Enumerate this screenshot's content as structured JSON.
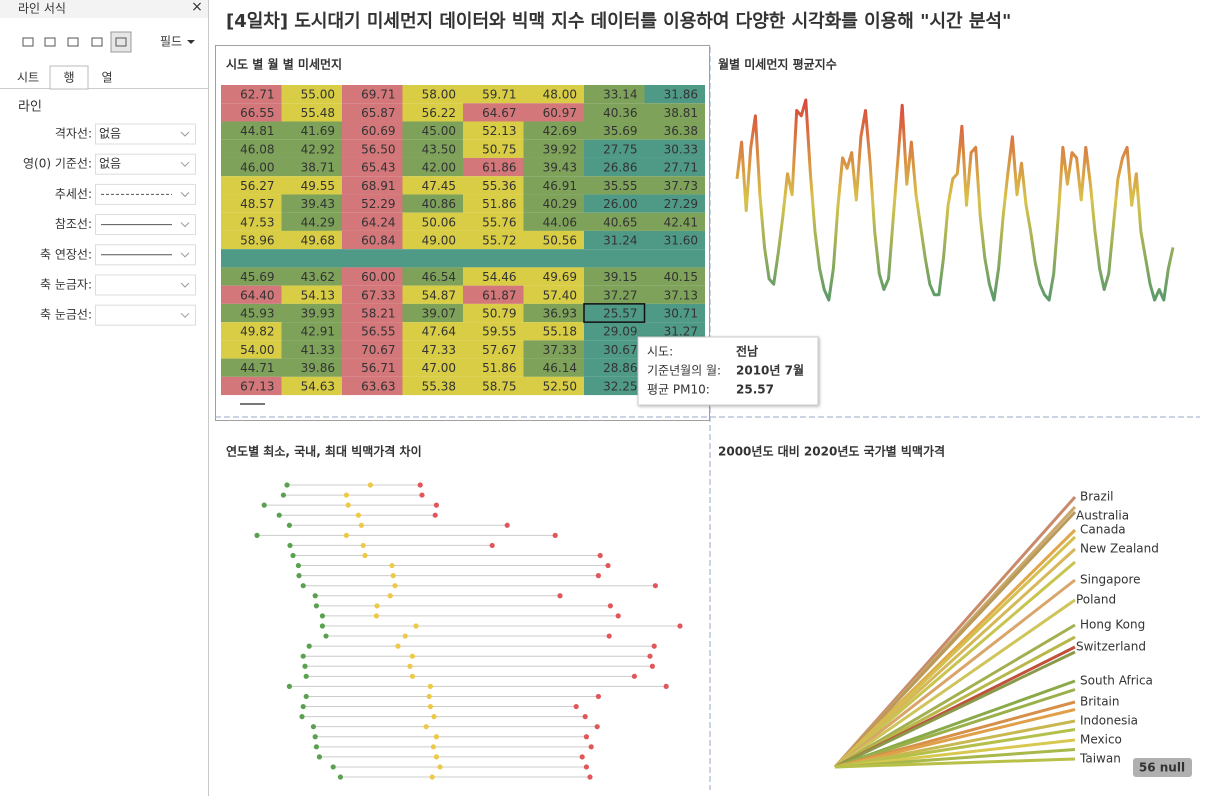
{
  "sidebar": {
    "title": "라인 서식",
    "close": "×",
    "field": "필드",
    "tabs": [
      "시트",
      "행",
      "열"
    ],
    "active_tab": 1,
    "section": "라인",
    "rows": [
      {
        "label": "격자선:",
        "value": "없음"
      },
      {
        "label": "영(0) 기준선:",
        "value": "없음"
      },
      {
        "label": "추세선:",
        "line": "dashed"
      },
      {
        "label": "참조선:",
        "line": "solid"
      },
      {
        "label": "축 연장선:",
        "line": "solid"
      },
      {
        "label": "축 눈금자:"
      },
      {
        "label": "축 눈금선:"
      }
    ]
  },
  "dashboard_title": "[4일차] 도시대기 미세먼지 데이터와 빅맥 지수 데이터를 이용하여 다양한 시각화를 이용해 \"시간 분석\"",
  "chart_data": [
    {
      "type": "heatmap",
      "title": "시도 별 월 별 미세먼지",
      "colors": {
        "red": "#d3777a",
        "yellow": "#d8cd45",
        "green": "#7ea25a",
        "teal": "#4f9a87"
      },
      "rows": [
        [
          "62.71",
          "55.00",
          "69.71",
          "58.00",
          "59.71",
          "48.00",
          "33.14",
          "31.86"
        ],
        [
          "66.55",
          "55.48",
          "65.87",
          "56.22",
          "64.67",
          "60.97",
          "40.36",
          "38.81"
        ],
        [
          "44.81",
          "41.69",
          "60.69",
          "45.00",
          "52.13",
          "42.69",
          "35.69",
          "36.38"
        ],
        [
          "46.08",
          "42.92",
          "56.50",
          "43.50",
          "50.75",
          "39.92",
          "27.75",
          "30.33"
        ],
        [
          "46.00",
          "38.71",
          "65.43",
          "42.00",
          "61.86",
          "39.43",
          "26.86",
          "27.71"
        ],
        [
          "56.27",
          "49.55",
          "68.91",
          "47.45",
          "55.36",
          "46.91",
          "35.55",
          "37.73"
        ],
        [
          "48.57",
          "39.43",
          "52.29",
          "40.86",
          "51.86",
          "40.29",
          "26.00",
          "27.29"
        ],
        [
          "47.53",
          "44.29",
          "64.24",
          "50.06",
          "55.76",
          "44.06",
          "40.65",
          "42.41"
        ],
        [
          "58.96",
          "49.68",
          "60.84",
          "49.00",
          "55.72",
          "50.56",
          "31.24",
          "31.60"
        ],
        [
          null,
          null,
          null,
          null,
          null,
          null,
          null,
          null
        ],
        [
          "45.69",
          "43.62",
          "60.00",
          "46.54",
          "54.46",
          "49.69",
          "39.15",
          "40.15"
        ],
        [
          "64.40",
          "54.13",
          "67.33",
          "54.87",
          "61.87",
          "57.40",
          "37.27",
          "37.13"
        ],
        [
          "45.93",
          "39.93",
          "58.21",
          "39.07",
          "50.79",
          "36.93",
          "25.57",
          "30.71"
        ],
        [
          "49.82",
          "42.91",
          "56.55",
          "47.64",
          "59.55",
          "55.18",
          "29.09",
          "31.27"
        ],
        [
          "54.00",
          "41.33",
          "70.67",
          "47.33",
          "57.67",
          "37.33",
          "30.67",
          null
        ],
        [
          "44.71",
          "39.86",
          "56.71",
          "47.00",
          "51.86",
          "46.14",
          "28.86",
          null
        ],
        [
          "67.13",
          "54.63",
          "63.63",
          "55.38",
          "58.75",
          "52.50",
          "32.25",
          null
        ]
      ],
      "selected": [
        12,
        6
      ],
      "tooltip": {
        "labels": [
          "시도:",
          "기준년월의 월:",
          "평균 PM10:"
        ],
        "values": [
          "전남",
          "2010년 7월",
          "25.57"
        ]
      }
    },
    {
      "type": "line",
      "title": "월별 미세먼지 평균지수",
      "colors": [
        "#d9483b",
        "#d8c24a",
        "#5a9a6a"
      ],
      "values": [
        145,
        180,
        115,
        175,
        205,
        130,
        80,
        50,
        45,
        75,
        110,
        150,
        130,
        210,
        205,
        220,
        150,
        95,
        60,
        40,
        30,
        60,
        120,
        165,
        155,
        170,
        125,
        185,
        210,
        160,
        95,
        55,
        40,
        50,
        105,
        160,
        215,
        140,
        180,
        130,
        100,
        70,
        45,
        35,
        35,
        70,
        120,
        145,
        150,
        195,
        120,
        170,
        175,
        110,
        70,
        45,
        30,
        60,
        110,
        150,
        185,
        130,
        160,
        120,
        95,
        65,
        45,
        35,
        30,
        55,
        110,
        175,
        140,
        170,
        165,
        125,
        175,
        140,
        95,
        60,
        40,
        55,
        100,
        145,
        165,
        175,
        120,
        150,
        95,
        70,
        45,
        30,
        40,
        30,
        60,
        80
      ]
    },
    {
      "type": "dumbbell",
      "title": "연도별 최소, 국내, 최대 빅맥가격 차이",
      "colors": [
        "#59a14f",
        "#edc948",
        "#e15759"
      ],
      "rows": [
        [
          0.78,
          2.17,
          3.0
        ],
        [
          0.72,
          1.77,
          3.03
        ],
        [
          0.4,
          1.8,
          3.27
        ],
        [
          0.65,
          1.97,
          3.25
        ],
        [
          0.82,
          2.02,
          4.45
        ],
        [
          0.28,
          1.77,
          5.25
        ],
        [
          0.83,
          2.05,
          4.2
        ],
        [
          0.88,
          2.08,
          6.0
        ],
        [
          0.97,
          2.53,
          6.13
        ],
        [
          0.98,
          2.55,
          5.97
        ],
        [
          1.05,
          2.58,
          6.92
        ],
        [
          1.25,
          2.5,
          5.33
        ],
        [
          1.27,
          2.28,
          6.17
        ],
        [
          1.37,
          2.27,
          6.3
        ],
        [
          1.37,
          2.93,
          7.33
        ],
        [
          1.43,
          2.75,
          6.15
        ],
        [
          1.15,
          2.63,
          6.9
        ],
        [
          1.05,
          2.87,
          6.83
        ],
        [
          1.08,
          2.83,
          6.87
        ],
        [
          1.1,
          2.87,
          6.57
        ],
        [
          0.82,
          3.17,
          7.1
        ],
        [
          1.1,
          3.15,
          5.97
        ],
        [
          1.05,
          3.17,
          5.6
        ],
        [
          1.03,
          3.23,
          5.75
        ],
        [
          1.22,
          3.1,
          5.95
        ],
        [
          1.25,
          3.27,
          5.77
        ],
        [
          1.27,
          3.22,
          5.85
        ],
        [
          1.32,
          3.27,
          5.7
        ],
        [
          1.55,
          3.33,
          5.77
        ],
        [
          1.67,
          3.2,
          5.83
        ]
      ]
    },
    {
      "type": "slope",
      "title": "2000년도 대비 2020년도 국가별 빅맥가격",
      "null_badge": "56 null",
      "series": [
        {
          "name": "Brazil",
          "color": "#c98a6a",
          "value": 5.4
        },
        {
          "color": "#c9a86a",
          "value": 5.2
        },
        {
          "name": "Australia",
          "color": "#b99a5a",
          "value": 5.1
        },
        {
          "name": "Canada",
          "color": "#e0a84a",
          "value": 4.74
        },
        {
          "color": "#d4c050",
          "value": 4.6
        },
        {
          "name": "New Zealand",
          "color": "#d6b85a",
          "value": 4.36
        },
        {
          "color": "#c8c450",
          "value": 4.1
        },
        {
          "name": "Singapore",
          "color": "#d9a56a",
          "value": 3.74
        },
        {
          "name": "Poland",
          "color": "#cfc45a",
          "value": 3.34
        },
        {
          "name": "Hong Kong",
          "color": "#a4b050",
          "value": 2.84
        },
        {
          "color": "#b8b84a",
          "value": 2.6
        },
        {
          "name": "Switzerland",
          "color": "#c0503a",
          "value": 2.4
        },
        {
          "color": "#8a9a4a",
          "value": 2.3
        },
        {
          "name": "South Africa",
          "color": "#8aaa4a",
          "value": 1.72
        },
        {
          "color": "#9ab04a",
          "value": 1.55
        },
        {
          "name": "Britain",
          "color": "#d6904a",
          "value": 1.3
        },
        {
          "color": "#e0a04a",
          "value": 1.15
        },
        {
          "name": "Indonesia",
          "color": "#c8b850",
          "value": 0.92
        },
        {
          "color": "#b4c04a",
          "value": 0.75
        },
        {
          "name": "Mexico",
          "color": "#d8c850",
          "value": 0.54
        },
        {
          "color": "#a8b84a",
          "value": 0.35
        },
        {
          "name": "Taiwan",
          "color": "#b8c048",
          "value": 0.16
        }
      ]
    }
  ]
}
